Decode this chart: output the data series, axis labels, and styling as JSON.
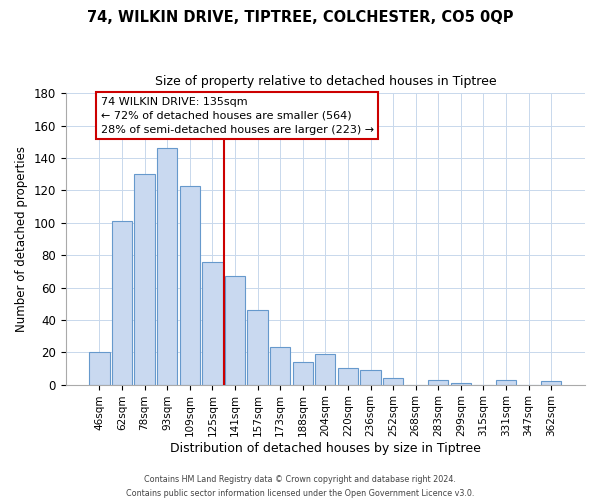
{
  "title": "74, WILKIN DRIVE, TIPTREE, COLCHESTER, CO5 0QP",
  "subtitle": "Size of property relative to detached houses in Tiptree",
  "xlabel": "Distribution of detached houses by size in Tiptree",
  "ylabel": "Number of detached properties",
  "bar_labels": [
    "46sqm",
    "62sqm",
    "78sqm",
    "93sqm",
    "109sqm",
    "125sqm",
    "141sqm",
    "157sqm",
    "173sqm",
    "188sqm",
    "204sqm",
    "220sqm",
    "236sqm",
    "252sqm",
    "268sqm",
    "283sqm",
    "299sqm",
    "315sqm",
    "331sqm",
    "347sqm",
    "362sqm"
  ],
  "bar_values": [
    20,
    101,
    130,
    146,
    123,
    76,
    67,
    46,
    23,
    14,
    19,
    10,
    9,
    4,
    0,
    3,
    1,
    0,
    3,
    0,
    2
  ],
  "bar_color": "#c9d9f0",
  "bar_edge_color": "#6699cc",
  "vline_x": 5.5,
  "vline_color": "#cc0000",
  "annotation_text": "74 WILKIN DRIVE: 135sqm\n← 72% of detached houses are smaller (564)\n28% of semi-detached houses are larger (223) →",
  "annotation_box_color": "#ffffff",
  "annotation_box_edge": "#cc0000",
  "ylim": [
    0,
    180
  ],
  "yticks": [
    0,
    20,
    40,
    60,
    80,
    100,
    120,
    140,
    160,
    180
  ],
  "footer_line1": "Contains HM Land Registry data © Crown copyright and database right 2024.",
  "footer_line2": "Contains public sector information licensed under the Open Government Licence v3.0.",
  "bg_color": "#ffffff",
  "grid_color": "#c8d8ec"
}
